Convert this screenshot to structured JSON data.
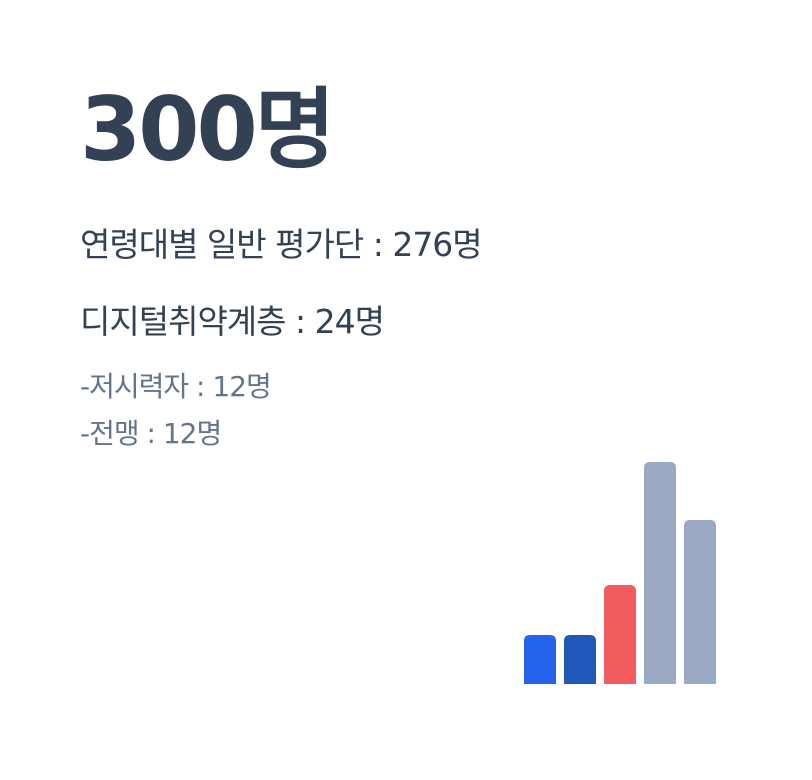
{
  "total": "300명",
  "groups": {
    "general": "연령대별 일반 평가단 : 276명",
    "digital": "디지털취약계층 : 24명",
    "low_vision": "-저시력자 : 12명",
    "blind": "-전맹 : 12명"
  },
  "chart_data": {
    "type": "bar",
    "values": [
      12,
      12,
      24,
      54,
      40
    ],
    "colors": [
      "#2563eb",
      "#2358bb",
      "#f25c5c",
      "#9aaac4",
      "#9aaac4"
    ]
  }
}
